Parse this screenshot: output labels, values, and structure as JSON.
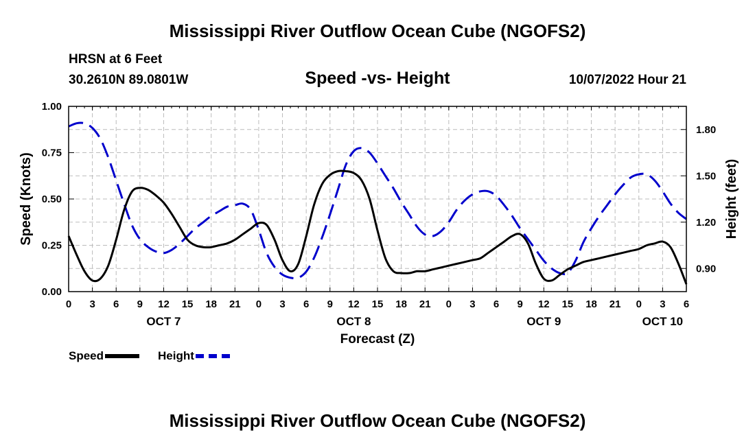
{
  "page_title": "Mississippi River Outflow Ocean Cube (NGOFS2)",
  "footer_title": "Mississippi River Outflow Ocean Cube (NGOFS2)",
  "header": {
    "station": "HRSN at 6 Feet",
    "coords": "30.2610N  89.0801W",
    "datetime": "10/07/2022 Hour 21"
  },
  "chart_data": {
    "type": "line",
    "title": "Speed -vs- Height",
    "xlabel": "Forecast (Z)",
    "ylabel": "Speed (Knots)",
    "y2label": "Height (feet)",
    "x_unit": "hours since 10/07/2022 00Z",
    "xlim": [
      0,
      78
    ],
    "ylim": [
      0,
      1.0
    ],
    "y2lim": [
      0.75,
      1.95
    ],
    "grid": true,
    "x_tick_labels": [
      "0",
      "3",
      "6",
      "9",
      "12",
      "15",
      "18",
      "21",
      "0",
      "3",
      "6",
      "9",
      "12",
      "15",
      "18",
      "21",
      "0",
      "3",
      "6",
      "9",
      "12",
      "15",
      "18",
      "21",
      "0",
      "3",
      "6"
    ],
    "x_tick_step_hours": 3,
    "day_labels": [
      {
        "text": "OCT 7",
        "hour": 12
      },
      {
        "text": "OCT 8",
        "hour": 36
      },
      {
        "text": "OCT 9",
        "hour": 60
      },
      {
        "text": "OCT 10",
        "hour": 75
      }
    ],
    "y_ticks": [
      "0.00",
      "0.25",
      "0.50",
      "0.75",
      "1.00"
    ],
    "y_tick_values": [
      0,
      0.25,
      0.5,
      0.75,
      1.0
    ],
    "y2_ticks": [
      "0.90",
      "1.20",
      "1.50",
      "1.80"
    ],
    "y2_tick_values": [
      0.9,
      1.2,
      1.5,
      1.8
    ],
    "series": [
      {
        "name": "Speed",
        "axis": "left",
        "color": "#000000",
        "style": "solid",
        "x": [
          0,
          1,
          2,
          3,
          4,
          5,
          6,
          7,
          8,
          9,
          10,
          11,
          12,
          13,
          14,
          15,
          16,
          17,
          18,
          19,
          20,
          21,
          22,
          23,
          24,
          25,
          26,
          27,
          28,
          29,
          30,
          31,
          32,
          33,
          34,
          35,
          36,
          37,
          38,
          39,
          40,
          41,
          42,
          43,
          44,
          45,
          46,
          47,
          48,
          49,
          50,
          51,
          52,
          53,
          54,
          55,
          56,
          57,
          58,
          59,
          60,
          61,
          62,
          63,
          64,
          65,
          66,
          67,
          68,
          69,
          70,
          71,
          72,
          73,
          74,
          75,
          76,
          77,
          78
        ],
        "values": [
          0.3,
          0.2,
          0.11,
          0.06,
          0.07,
          0.14,
          0.28,
          0.44,
          0.54,
          0.56,
          0.55,
          0.52,
          0.48,
          0.42,
          0.35,
          0.28,
          0.25,
          0.24,
          0.24,
          0.25,
          0.26,
          0.28,
          0.31,
          0.34,
          0.37,
          0.36,
          0.28,
          0.17,
          0.11,
          0.15,
          0.3,
          0.47,
          0.58,
          0.63,
          0.65,
          0.65,
          0.64,
          0.6,
          0.5,
          0.33,
          0.18,
          0.11,
          0.1,
          0.1,
          0.11,
          0.11,
          0.12,
          0.13,
          0.14,
          0.15,
          0.16,
          0.17,
          0.18,
          0.21,
          0.24,
          0.27,
          0.3,
          0.31,
          0.26,
          0.15,
          0.07,
          0.06,
          0.09,
          0.12,
          0.14,
          0.16,
          0.17,
          0.18,
          0.19,
          0.2,
          0.21,
          0.22,
          0.23,
          0.25,
          0.26,
          0.27,
          0.24,
          0.15,
          0.04
        ]
      },
      {
        "name": "Height",
        "axis": "right",
        "color": "#0000cc",
        "style": "dashed",
        "x": [
          0,
          1,
          2,
          3,
          4,
          5,
          6,
          7,
          8,
          9,
          10,
          11,
          12,
          13,
          14,
          15,
          16,
          17,
          18,
          19,
          20,
          21,
          22,
          23,
          24,
          25,
          26,
          27,
          28,
          29,
          30,
          31,
          32,
          33,
          34,
          35,
          36,
          37,
          38,
          39,
          40,
          41,
          42,
          43,
          44,
          45,
          46,
          47,
          48,
          49,
          50,
          51,
          52,
          53,
          54,
          55,
          56,
          57,
          58,
          59,
          60,
          61,
          62,
          63,
          64,
          65,
          66,
          67,
          68,
          69,
          70,
          71,
          72,
          73,
          74,
          75,
          76,
          77,
          78
        ],
        "values": [
          1.82,
          1.84,
          1.84,
          1.81,
          1.74,
          1.62,
          1.47,
          1.32,
          1.18,
          1.09,
          1.04,
          1.01,
          1.0,
          1.02,
          1.06,
          1.11,
          1.16,
          1.2,
          1.24,
          1.27,
          1.3,
          1.31,
          1.32,
          1.28,
          1.15,
          1.0,
          0.91,
          0.86,
          0.84,
          0.84,
          0.88,
          0.97,
          1.1,
          1.25,
          1.41,
          1.57,
          1.66,
          1.68,
          1.65,
          1.58,
          1.5,
          1.42,
          1.33,
          1.25,
          1.17,
          1.12,
          1.11,
          1.14,
          1.2,
          1.28,
          1.34,
          1.38,
          1.4,
          1.4,
          1.37,
          1.31,
          1.24,
          1.16,
          1.09,
          1.02,
          0.95,
          0.9,
          0.87,
          0.87,
          0.95,
          1.07,
          1.16,
          1.24,
          1.31,
          1.38,
          1.44,
          1.49,
          1.51,
          1.51,
          1.47,
          1.4,
          1.32,
          1.26,
          1.22
        ]
      }
    ],
    "legend": [
      {
        "label": "Speed",
        "color": "#000000",
        "style": "solid"
      },
      {
        "label": "Height",
        "color": "#0000cc",
        "style": "dashed"
      }
    ],
    "legend_position": "bottom-left"
  }
}
